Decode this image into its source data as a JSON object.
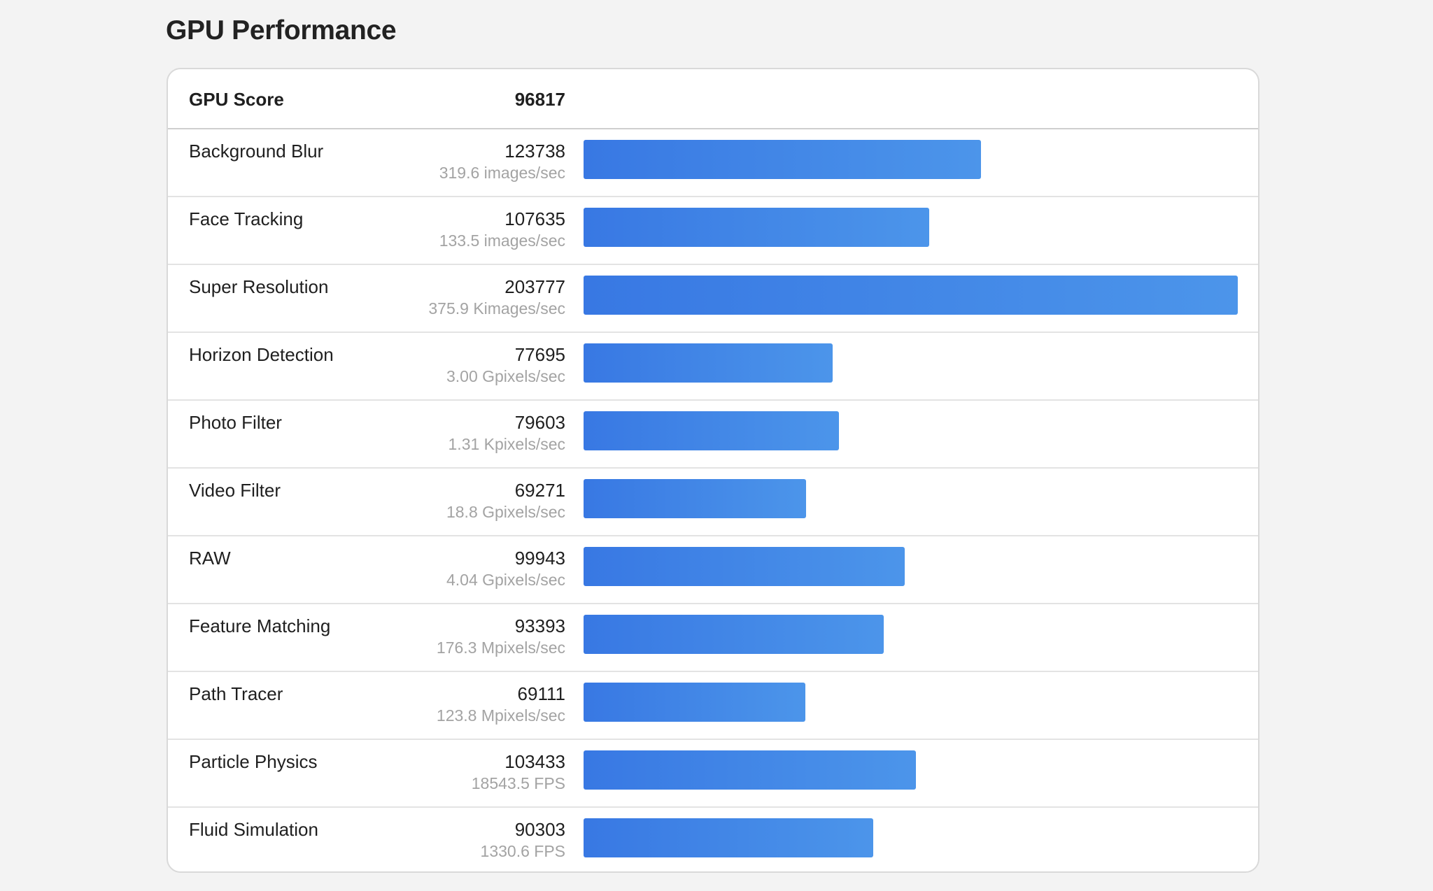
{
  "page": {
    "title": "GPU Performance"
  },
  "summary": {
    "label": "GPU Score",
    "value": "96817"
  },
  "colors": {
    "bar_start": "#3878e3",
    "bar_end": "#4c95ea",
    "background": "#f3f3f3"
  },
  "chart_data": {
    "type": "bar",
    "orientation": "horizontal",
    "categories": [
      "Background Blur",
      "Face Tracking",
      "Super Resolution",
      "Horizon Detection",
      "Photo Filter",
      "Video Filter",
      "RAW",
      "Feature Matching",
      "Path Tracer",
      "Particle Physics",
      "Fluid Simulation"
    ],
    "values": [
      123738,
      107635,
      203777,
      77695,
      79603,
      69271,
      99943,
      93393,
      69111,
      103433,
      90303
    ],
    "rates": [
      "319.6 images/sec",
      "133.5 images/sec",
      "375.9 Kimages/sec",
      "3.00 Gpixels/sec",
      "1.31 Kpixels/sec",
      "18.8 Gpixels/sec",
      "4.04 Gpixels/sec",
      "176.3 Mpixels/sec",
      "123.8 Mpixels/sec",
      "18543.5 FPS",
      "1330.6 FPS"
    ],
    "xlim": [
      0,
      203777
    ],
    "grid": false,
    "legend": "none"
  }
}
